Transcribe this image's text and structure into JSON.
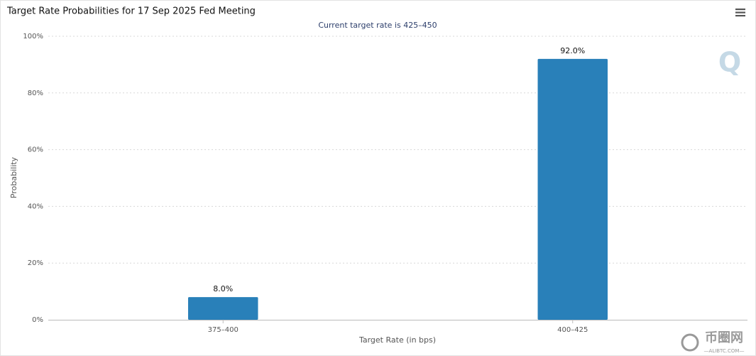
{
  "chart_data": {
    "type": "bar",
    "title": "Target Rate Probabilities for 17 Sep 2025 Fed Meeting",
    "subtitle": "Current target rate is 425–450",
    "x_label": "Target Rate (in bps)",
    "y_label": "Probability",
    "categories": [
      "375–400",
      "400–425"
    ],
    "values": [
      8.0,
      92.0
    ],
    "value_labels": [
      "8.0%",
      "92.0%"
    ],
    "color": "#2980b9",
    "ylim": [
      0,
      100
    ],
    "yticks": [
      {
        "value": 0,
        "label": "0%"
      },
      {
        "value": 20,
        "label": "20%"
      },
      {
        "value": 40,
        "label": "40%"
      },
      {
        "value": 60,
        "label": "60%"
      },
      {
        "value": 80,
        "label": "80%"
      },
      {
        "value": 100,
        "label": "100%"
      }
    ],
    "grid": true,
    "logo": "Q",
    "watermark": {
      "text": "币圈网",
      "subtext": "—ALIBTC.COM—"
    }
  }
}
